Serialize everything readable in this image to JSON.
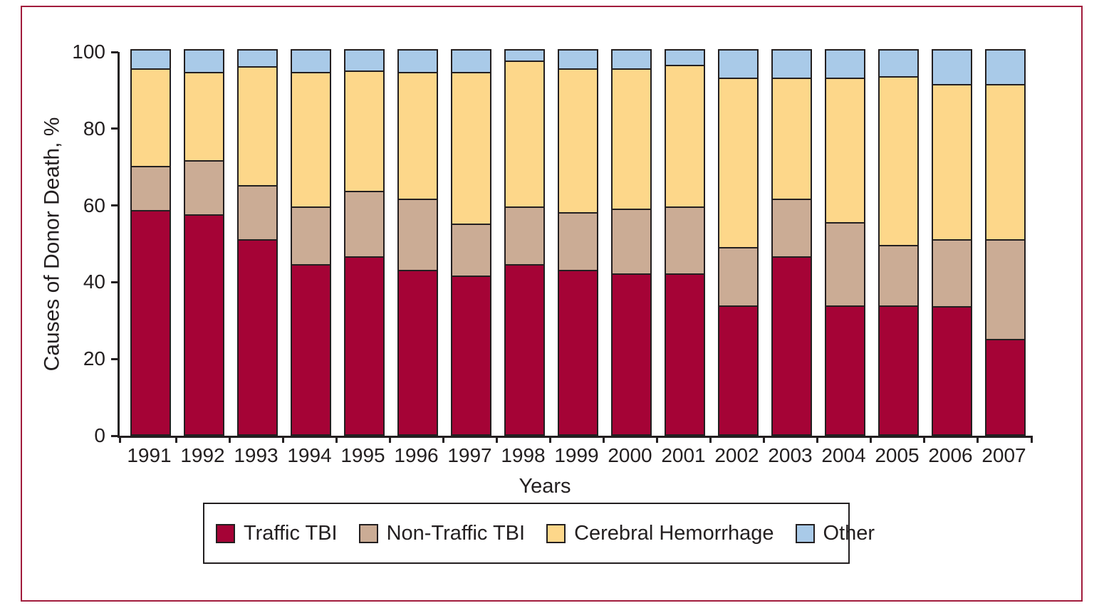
{
  "figure": {
    "frame_color": "#A11C3C",
    "background": "#FFFFFF",
    "text_color": "#231F20",
    "axis_color": "#231F20",
    "bar_outline_color": "#231F20"
  },
  "chart_data": {
    "type": "bar",
    "stacked": true,
    "title": "",
    "xlabel": "Years",
    "ylabel": "Causes of Donor Death, %",
    "ylim": [
      0,
      100
    ],
    "yticks": [
      0,
      20,
      40,
      60,
      80,
      100
    ],
    "grid": false,
    "legend_position": "bottom",
    "categories": [
      "1991",
      "1992",
      "1993",
      "1994",
      "1995",
      "1996",
      "1997",
      "1998",
      "1999",
      "2000",
      "2001",
      "2002",
      "2003",
      "2004",
      "2005",
      "2006",
      "2007"
    ],
    "series": [
      {
        "name": "Traffic TBI",
        "color": "#A50336",
        "values": [
          58,
          57,
          50.5,
          44,
          46,
          42.5,
          41,
          44,
          42.5,
          41.5,
          41.5,
          33.3,
          46,
          33.3,
          33.3,
          33,
          24.5
        ]
      },
      {
        "name": "Non-Traffic TBI",
        "color": "#CBAC95",
        "values": [
          11.5,
          14,
          14,
          15,
          17,
          18.5,
          13.5,
          15,
          15,
          17,
          17.5,
          15.2,
          15,
          21.7,
          15.7,
          17.5,
          26
        ]
      },
      {
        "name": "Cerebral Hemorrhage",
        "color": "#FDD78A",
        "values": [
          25.5,
          23,
          31,
          35,
          31.5,
          33,
          39.5,
          38,
          37.5,
          36.5,
          37,
          44,
          31.5,
          37.5,
          44,
          40.5,
          40.5
        ]
      },
      {
        "name": "Other",
        "color": "#A9CAE8",
        "values": [
          5,
          6,
          4.5,
          6,
          5.5,
          6,
          6,
          3,
          5,
          5,
          4,
          7.5,
          7.5,
          7.5,
          7,
          9,
          9
        ]
      }
    ]
  }
}
